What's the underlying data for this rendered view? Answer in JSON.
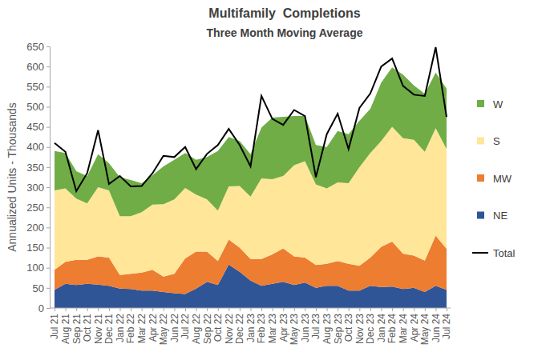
{
  "chart_data": {
    "type": "area",
    "title": "Multifamily  Completions",
    "subtitle": "Three Month Moving Average",
    "ylabel": "Annualized Units - Thousands",
    "categories": [
      "Jul 21",
      "Aug 21",
      "Sep 21",
      "Oct 21",
      "Nov 21",
      "Dec 21",
      "Jan 22",
      "Feb 22",
      "Mar 22",
      "Apr 22",
      "May 22",
      "Jun 22",
      "Jul 22",
      "Aug 22",
      "Sep 22",
      "Oct 22",
      "Nov 22",
      "Dec 22",
      "Jan 23",
      "Feb 23",
      "Mar 23",
      "Apr 23",
      "May 23",
      "Jun 23",
      "Jul 23",
      "Aug 23",
      "Sep 23",
      "Oct 23",
      "Nov 23",
      "Dec 23",
      "Jan 24",
      "Feb 24",
      "Mar 24",
      "Apr 24",
      "May 24",
      "Jun 24",
      "Jul 24"
    ],
    "series": [
      {
        "name": "W",
        "color": "#70ad47",
        "type": "area",
        "values": [
          98,
          88,
          68,
          68,
          82,
          68,
          97,
          90,
          72,
          73,
          94,
          98,
          87,
          86,
          105,
          148,
          123,
          112,
          105,
          126,
          153,
          147,
          122,
          112,
          98,
          103,
          128,
          122,
          115,
          110,
          145,
          148,
          158,
          135,
          144,
          138,
          150
        ]
      },
      {
        "name": "S",
        "color": "#ffe699",
        "type": "area",
        "values": [
          197,
          182,
          152,
          140,
          172,
          167,
          146,
          143,
          150,
          162,
          180,
          185,
          175,
          142,
          130,
          125,
          132,
          153,
          155,
          200,
          187,
          180,
          227,
          240,
          200,
          187,
          195,
          200,
          245,
          260,
          263,
          285,
          287,
          288,
          270,
          267,
          248
        ]
      },
      {
        "name": "MW",
        "color": "#ed7d31",
        "type": "area",
        "values": [
          50,
          55,
          63,
          60,
          70,
          70,
          34,
          38,
          45,
          52,
          38,
          48,
          88,
          92,
          75,
          60,
          62,
          60,
          54,
          67,
          73,
          83,
          71,
          62,
          57,
          55,
          62,
          67,
          62,
          70,
          100,
          112,
          88,
          80,
          78,
          125,
          102
        ]
      },
      {
        "name": "NE",
        "color": "#2f5597",
        "type": "area",
        "values": [
          45,
          60,
          57,
          60,
          58,
          55,
          48,
          47,
          43,
          43,
          40,
          37,
          35,
          48,
          65,
          57,
          108,
          90,
          68,
          55,
          60,
          65,
          57,
          63,
          50,
          55,
          55,
          43,
          43,
          55,
          52,
          53,
          47,
          50,
          40,
          55,
          45
        ]
      },
      {
        "name": "Total",
        "color": "#000000",
        "type": "line",
        "values": [
          410,
          388,
          290,
          335,
          442,
          308,
          328,
          302,
          303,
          335,
          378,
          375,
          400,
          345,
          383,
          405,
          445,
          405,
          352,
          527,
          470,
          455,
          492,
          477,
          325,
          432,
          483,
          395,
          497,
          533,
          600,
          620,
          552,
          530,
          527,
          648,
          475
        ]
      }
    ],
    "ylim": [
      0,
      650
    ],
    "yticks": [
      0,
      50,
      100,
      150,
      200,
      250,
      300,
      350,
      400,
      450,
      500,
      550,
      600,
      650
    ],
    "stacked": true,
    "grid": false,
    "legend": "right"
  }
}
